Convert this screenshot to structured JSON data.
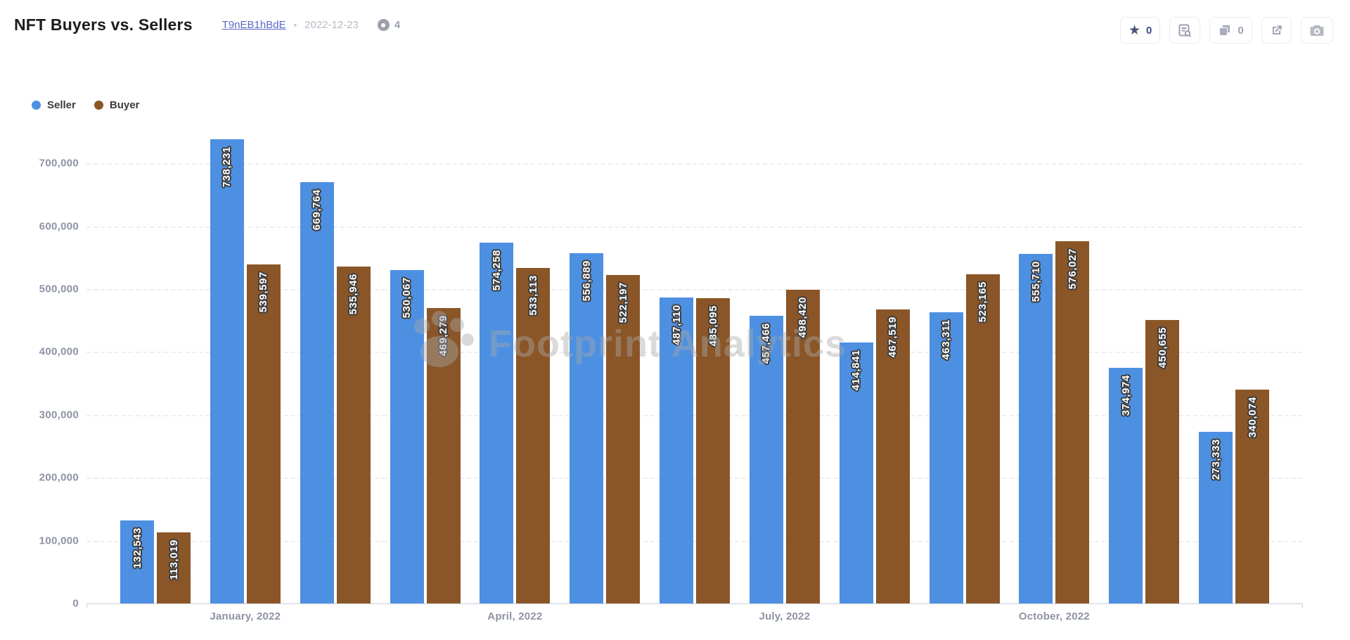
{
  "header": {
    "title": "NFT Buyers vs. Sellers",
    "chart_id": "T9nEB1hBdE",
    "dot_separator": "•",
    "date": "2022-12-23",
    "view_count": "4"
  },
  "toolbar": {
    "star_count": "0",
    "copy_count": "0",
    "buttons": [
      "star",
      "view-query",
      "copy",
      "open-external",
      "screenshot"
    ]
  },
  "legend": {
    "items": [
      {
        "label": "Seller",
        "color": "#4d90e2"
      },
      {
        "label": "Buyer",
        "color": "#8a5628"
      }
    ]
  },
  "watermark": "Footprint Analytics",
  "chart_data": {
    "type": "bar",
    "title": "NFT Buyers vs. Sellers",
    "categories": [
      "",
      "January, 2022",
      "",
      "",
      "April, 2022",
      "",
      "",
      "July, 2022",
      "",
      "",
      "October, 2022",
      "",
      ""
    ],
    "series": [
      {
        "name": "Seller",
        "color": "#4d90e2",
        "values": [
          132543,
          738231,
          669764,
          530067,
          574258,
          556889,
          487110,
          457466,
          414841,
          463311,
          555710,
          374974,
          273333
        ]
      },
      {
        "name": "Buyer",
        "color": "#8a5628",
        "values": [
          113019,
          539597,
          535946,
          469279,
          533113,
          522197,
          485095,
          498420,
          467519,
          523165,
          576027,
          450655,
          340074
        ]
      }
    ],
    "y_ticks": [
      0,
      100000,
      200000,
      300000,
      400000,
      500000,
      600000,
      700000
    ],
    "ylim": [
      0,
      760000
    ],
    "grid": "horizontal-dashed",
    "legend_position": "top-left",
    "bar_labels": "inside-top-rotated-90",
    "x_labeled_groups": [
      1,
      4,
      7,
      10
    ]
  }
}
